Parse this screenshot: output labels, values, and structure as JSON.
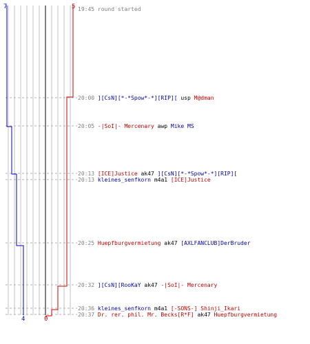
{
  "header": {
    "blue_start": "7",
    "red_start": "5"
  },
  "footer": {
    "blue_end": "4",
    "red_end": "0"
  },
  "events": [
    {
      "time": "19:45",
      "message": "round started"
    },
    {
      "time": "20:00",
      "killer": "][CsN][*-*Spow*-*][RIP][",
      "killer_team": "blue",
      "weapon": "usp",
      "victim": "M@dman",
      "victim_team": "red"
    },
    {
      "time": "20:05",
      "killer": "-|SoI|- Mercenary",
      "killer_team": "red",
      "weapon": "awp",
      "victim": "Mike MS",
      "victim_team": "blue"
    },
    {
      "time": "20:13",
      "killer": "[ICE]Justice",
      "killer_team": "red",
      "weapon": "ak47",
      "victim": "][CsN][*-*Spow*-*][RIP][",
      "victim_team": "blue"
    },
    {
      "time": "20:13",
      "killer": "kleines_senfkorn",
      "killer_team": "blue",
      "weapon": "m4a1",
      "victim": "[ICE]Justice",
      "victim_team": "red"
    },
    {
      "time": "20:25",
      "killer": "Huepfburgvermietung",
      "killer_team": "red",
      "weapon": "ak47",
      "victim": "[AXLFANCLUB]DerBruder",
      "victim_team": "blue"
    },
    {
      "time": "20:32",
      "killer": "][CsN][RooKaY",
      "killer_team": "blue",
      "weapon": "ak47",
      "victim": "-|SoI|- Mercenary",
      "victim_team": "red"
    },
    {
      "time": "20:36",
      "killer": "kleines_senfkorn",
      "killer_team": "blue",
      "weapon": "m4a1",
      "victim": "[-SONS-] Shinji_Ikari",
      "victim_team": "red"
    },
    {
      "time": "20:37",
      "killer": "Dr. rer. phil. Mr. Becks[R*F]",
      "killer_team": "red",
      "weapon": "ak47",
      "victim": "Huepfburgvermietung",
      "victim_team": "red"
    }
  ],
  "colors": {
    "blue": "#0000c8",
    "red": "#c80000",
    "grid": "#c0c0c0",
    "midline": "#808080",
    "dash": "#b0b0b0"
  }
}
